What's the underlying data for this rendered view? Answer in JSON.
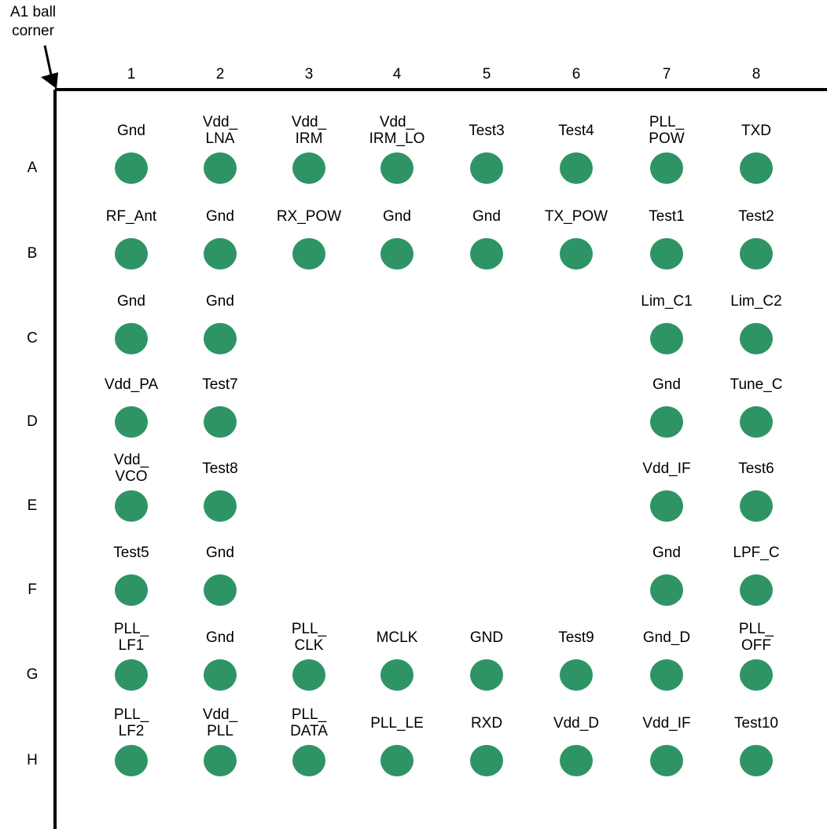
{
  "corner_label": [
    "A1 ball",
    "corner"
  ],
  "columns": [
    "1",
    "2",
    "3",
    "4",
    "5",
    "6",
    "7",
    "8"
  ],
  "rows": [
    "A",
    "B",
    "C",
    "D",
    "E",
    "F",
    "G",
    "H"
  ],
  "ball_color": "#2e9465",
  "border_color": "#000000",
  "pins": [
    {
      "row": "A",
      "col": "1",
      "label": [
        "Gnd"
      ]
    },
    {
      "row": "A",
      "col": "2",
      "label": [
        "Vdd_",
        "LNA"
      ]
    },
    {
      "row": "A",
      "col": "3",
      "label": [
        "Vdd_",
        "IRM"
      ]
    },
    {
      "row": "A",
      "col": "4",
      "label": [
        "Vdd_",
        "IRM_LO"
      ]
    },
    {
      "row": "A",
      "col": "5",
      "label": [
        "Test3"
      ]
    },
    {
      "row": "A",
      "col": "6",
      "label": [
        "Test4"
      ]
    },
    {
      "row": "A",
      "col": "7",
      "label": [
        "PLL_",
        "POW"
      ]
    },
    {
      "row": "A",
      "col": "8",
      "label": [
        "TXD"
      ]
    },
    {
      "row": "B",
      "col": "1",
      "label": [
        "RF_Ant"
      ]
    },
    {
      "row": "B",
      "col": "2",
      "label": [
        "Gnd"
      ]
    },
    {
      "row": "B",
      "col": "3",
      "label": [
        "RX_POW"
      ]
    },
    {
      "row": "B",
      "col": "4",
      "label": [
        "Gnd"
      ]
    },
    {
      "row": "B",
      "col": "5",
      "label": [
        "Gnd"
      ]
    },
    {
      "row": "B",
      "col": "6",
      "label": [
        "TX_POW"
      ]
    },
    {
      "row": "B",
      "col": "7",
      "label": [
        "Test1"
      ]
    },
    {
      "row": "B",
      "col": "8",
      "label": [
        "Test2"
      ]
    },
    {
      "row": "C",
      "col": "1",
      "label": [
        "Gnd"
      ]
    },
    {
      "row": "C",
      "col": "2",
      "label": [
        "Gnd"
      ]
    },
    {
      "row": "C",
      "col": "7",
      "label": [
        "Lim_C1"
      ]
    },
    {
      "row": "C",
      "col": "8",
      "label": [
        "Lim_C2"
      ]
    },
    {
      "row": "D",
      "col": "1",
      "label": [
        "Vdd_PA"
      ]
    },
    {
      "row": "D",
      "col": "2",
      "label": [
        "Test7"
      ]
    },
    {
      "row": "D",
      "col": "7",
      "label": [
        "Gnd"
      ]
    },
    {
      "row": "D",
      "col": "8",
      "label": [
        "Tune_C"
      ]
    },
    {
      "row": "E",
      "col": "1",
      "label": [
        "Vdd_",
        "VCO"
      ]
    },
    {
      "row": "E",
      "col": "2",
      "label": [
        "Test8"
      ]
    },
    {
      "row": "E",
      "col": "7",
      "label": [
        "Vdd_IF"
      ]
    },
    {
      "row": "E",
      "col": "8",
      "label": [
        "Test6"
      ]
    },
    {
      "row": "F",
      "col": "1",
      "label": [
        "Test5"
      ]
    },
    {
      "row": "F",
      "col": "2",
      "label": [
        "Gnd"
      ]
    },
    {
      "row": "F",
      "col": "7",
      "label": [
        "Gnd"
      ]
    },
    {
      "row": "F",
      "col": "8",
      "label": [
        "LPF_C"
      ]
    },
    {
      "row": "G",
      "col": "1",
      "label": [
        "PLL_",
        "LF1"
      ]
    },
    {
      "row": "G",
      "col": "2",
      "label": [
        "Gnd"
      ]
    },
    {
      "row": "G",
      "col": "3",
      "label": [
        "PLL_",
        "CLK"
      ]
    },
    {
      "row": "G",
      "col": "4",
      "label": [
        "MCLK"
      ]
    },
    {
      "row": "G",
      "col": "5",
      "label": [
        "GND"
      ]
    },
    {
      "row": "G",
      "col": "6",
      "label": [
        "Test9"
      ]
    },
    {
      "row": "G",
      "col": "7",
      "label": [
        "Gnd_D"
      ]
    },
    {
      "row": "G",
      "col": "8",
      "label": [
        "PLL_",
        "OFF"
      ]
    },
    {
      "row": "H",
      "col": "1",
      "label": [
        "PLL_",
        "LF2"
      ]
    },
    {
      "row": "H",
      "col": "2",
      "label": [
        "Vdd_",
        "PLL"
      ]
    },
    {
      "row": "H",
      "col": "3",
      "label": [
        "PLL_",
        "DATA"
      ]
    },
    {
      "row": "H",
      "col": "4",
      "label": [
        "PLL_LE"
      ]
    },
    {
      "row": "H",
      "col": "5",
      "label": [
        "RXD"
      ]
    },
    {
      "row": "H",
      "col": "6",
      "label": [
        "Vdd_D"
      ]
    },
    {
      "row": "H",
      "col": "7",
      "label": [
        "Vdd_IF"
      ]
    },
    {
      "row": "H",
      "col": "8",
      "label": [
        "Test10"
      ]
    }
  ]
}
